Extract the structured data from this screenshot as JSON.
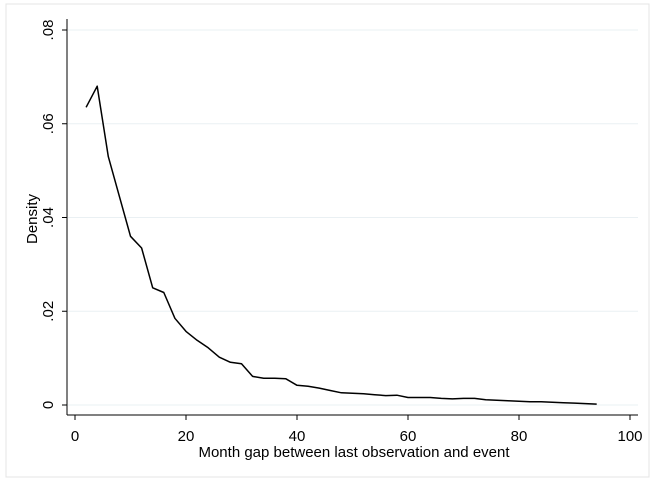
{
  "chart_data": {
    "type": "line",
    "title": "",
    "xlabel": "Month gap between last observation and event",
    "ylabel": "Density",
    "xlim": [
      0,
      100
    ],
    "ylim": [
      0,
      0.08
    ],
    "x_ticks": [
      0,
      20,
      40,
      60,
      80,
      100
    ],
    "x_tick_labels": [
      "0",
      "20",
      "40",
      "60",
      "80",
      "100"
    ],
    "y_ticks": [
      0,
      0.02,
      0.04,
      0.06,
      0.08
    ],
    "y_tick_labels": [
      "0",
      ".02",
      ".04",
      ".06",
      ".08"
    ],
    "grid": true,
    "colors": {
      "line": "#000000",
      "grid": "#eaf0f3",
      "frame": "#e4e4e4",
      "axis": "#000000"
    },
    "series": [
      {
        "x": [
          2,
          4,
          6,
          8,
          10,
          12,
          14,
          16,
          18,
          20,
          22,
          24,
          26,
          28,
          30,
          32,
          34,
          36,
          38,
          40,
          42,
          44,
          46,
          48,
          50,
          52,
          54,
          56,
          58,
          60,
          62,
          64,
          66,
          68,
          70,
          72,
          74,
          76,
          78,
          80,
          82,
          84,
          86,
          88,
          90,
          92,
          94
        ],
        "y": [
          0.0635,
          0.068,
          0.053,
          0.0445,
          0.036,
          0.0335,
          0.025,
          0.024,
          0.0185,
          0.0157,
          0.0138,
          0.0122,
          0.0102,
          0.0091,
          0.0088,
          0.0061,
          0.0057,
          0.0057,
          0.0056,
          0.0042,
          0.004,
          0.0036,
          0.0031,
          0.0026,
          0.0025,
          0.0024,
          0.0022,
          0.002,
          0.0021,
          0.0016,
          0.0016,
          0.0016,
          0.0014,
          0.0013,
          0.0014,
          0.0014,
          0.0011,
          0.001,
          0.0009,
          0.0008,
          0.0007,
          0.0007,
          0.0006,
          0.0005,
          0.0004,
          0.0003,
          0.0002
        ]
      }
    ]
  }
}
